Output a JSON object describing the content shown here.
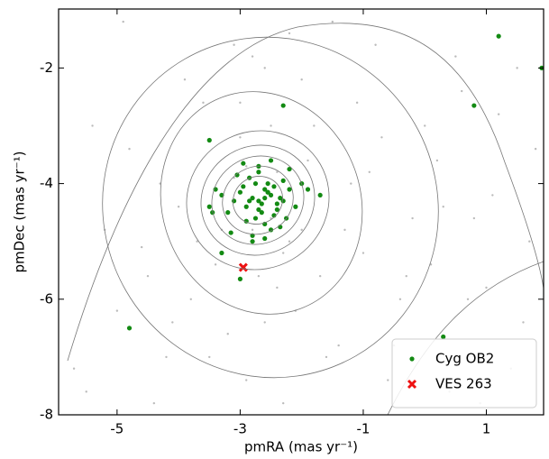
{
  "chart_data": {
    "type": "scatter",
    "x_label": "pmRA (mas yr⁻¹)",
    "y_label": "pmDec (mas yr⁻¹)",
    "xlim": [
      -5.95,
      1.93
    ],
    "ylim": [
      -8,
      -0.98
    ],
    "xticks": [
      -5,
      -3,
      -1,
      1
    ],
    "yticks": [
      -2,
      -4,
      -6,
      -8
    ],
    "legend": "lower right",
    "series": [
      {
        "color": "#bbbbbb",
        "marker": "dot",
        "x": [
          -5.5,
          -5.0,
          -4.6,
          -4.2,
          -3.8,
          -3.4,
          -3.0,
          -2.6,
          -2.2,
          -1.8,
          -1.4,
          -1.0,
          -0.6,
          -0.2,
          0.2,
          0.6,
          1.0,
          1.4,
          1.8,
          -5.2,
          -4.8,
          -4.4,
          -4.0,
          -3.6,
          -3.2,
          -2.8,
          -2.4,
          -2.0,
          -1.6,
          -1.2,
          -0.8,
          -0.4,
          0.0,
          0.4,
          0.8,
          1.2,
          1.6,
          -5.7,
          -4.5,
          -3.9,
          -3.3,
          -2.9,
          -2.5,
          -2.1,
          -1.5,
          -0.9,
          -0.3,
          0.5,
          1.1,
          -4.9,
          -4.1,
          -3.5,
          -3.1,
          -2.7,
          -2.3,
          -1.9,
          -1.1,
          -0.5,
          0.3,
          0.9,
          1.7,
          -5.4,
          -4.3,
          -3.7,
          -3.0,
          -2.6,
          -2.2,
          -1.7,
          -1.3,
          -0.7,
          0.1,
          0.7,
          1.5,
          -2.8,
          -2.4,
          -3.1,
          -2.0,
          -2.5,
          -2.9,
          -2.3
        ],
        "y": [
          -7.6,
          -6.2,
          -5.1,
          -7.0,
          -6.0,
          -5.4,
          -3.2,
          -2.0,
          -1.4,
          -3.0,
          -6.8,
          -5.2,
          -7.4,
          -4.6,
          -3.6,
          -2.4,
          -5.8,
          -7.2,
          -3.4,
          -4.8,
          -3.4,
          -7.8,
          -4.4,
          -2.6,
          -6.6,
          -1.8,
          -5.8,
          -2.2,
          -7.0,
          -4.0,
          -1.6,
          -6.0,
          -3.0,
          -7.6,
          -4.6,
          -2.8,
          -6.4,
          -7.2,
          -5.6,
          -2.2,
          -4.8,
          -7.4,
          -3.0,
          -6.2,
          -1.2,
          -3.8,
          -5.6,
          -1.8,
          -4.2,
          -1.2,
          -6.4,
          -7.0,
          -1.6,
          -5.6,
          -7.8,
          -3.6,
          -2.6,
          -6.8,
          -4.4,
          -7.8,
          -5.0,
          -3.0,
          -4.0,
          -5.0,
          -2.6,
          -6.4,
          -5.0,
          -5.6,
          -4.8,
          -3.2,
          -5.4,
          -6.0,
          -2.0,
          -4.8,
          -3.8,
          -3.9,
          -4.8,
          -4.6,
          -3.7,
          -5.2
        ]
      },
      {
        "name": "Cyg OB2",
        "color": "#138a13",
        "marker": "circle",
        "x": [
          -2.7,
          -2.5,
          -2.9,
          -2.6,
          -2.8,
          -2.4,
          -3.0,
          -2.65,
          -2.55,
          -2.75,
          -2.35,
          -3.1,
          -2.2,
          -2.85,
          -2.45,
          -2.95,
          -2.6,
          -2.7,
          -2.5,
          -3.2,
          -2.3,
          -2.8,
          -2.4,
          -2.9,
          -2.1,
          -3.3,
          -2.65,
          -2.55,
          -2.75,
          -2.25,
          -3.05,
          -2.6,
          -2.7,
          -2.85,
          -2.35,
          -3.4,
          -2.0,
          -2.5,
          -2.8,
          -3.5,
          -2.2,
          -2.6,
          -3.15,
          -2.45,
          -2.95,
          -1.9,
          -3.45,
          -2.7,
          -2.3,
          -2.55,
          1.2,
          1.9,
          0.8,
          -2.3,
          -3.5,
          -4.8,
          0.3,
          -3.0,
          -3.3,
          -1.7
        ],
        "y": [
          -4.3,
          -4.2,
          -4.4,
          -4.1,
          -4.25,
          -4.35,
          -4.15,
          -4.5,
          -4.0,
          -4.6,
          -4.25,
          -4.3,
          -4.1,
          -3.9,
          -4.55,
          -4.05,
          -4.7,
          -3.8,
          -4.8,
          -4.5,
          -3.95,
          -4.9,
          -4.45,
          -4.65,
          -4.4,
          -4.2,
          -4.35,
          -4.15,
          -4.0,
          -4.6,
          -3.85,
          -4.95,
          -3.7,
          -4.3,
          -4.75,
          -4.1,
          -4.0,
          -3.6,
          -5.0,
          -4.4,
          -3.75,
          -4.25,
          -4.85,
          -4.05,
          -3.65,
          -4.1,
          -4.5,
          -4.45,
          -4.3,
          -4.15,
          -1.45,
          -2.0,
          -2.65,
          -2.65,
          -3.25,
          -6.5,
          -6.65,
          -5.65,
          -5.2,
          -4.2
        ]
      },
      {
        "name": "VES 263",
        "color": "#ee1111",
        "marker": "x",
        "x": [
          -2.95
        ],
        "y": [
          -5.45
        ]
      }
    ]
  }
}
